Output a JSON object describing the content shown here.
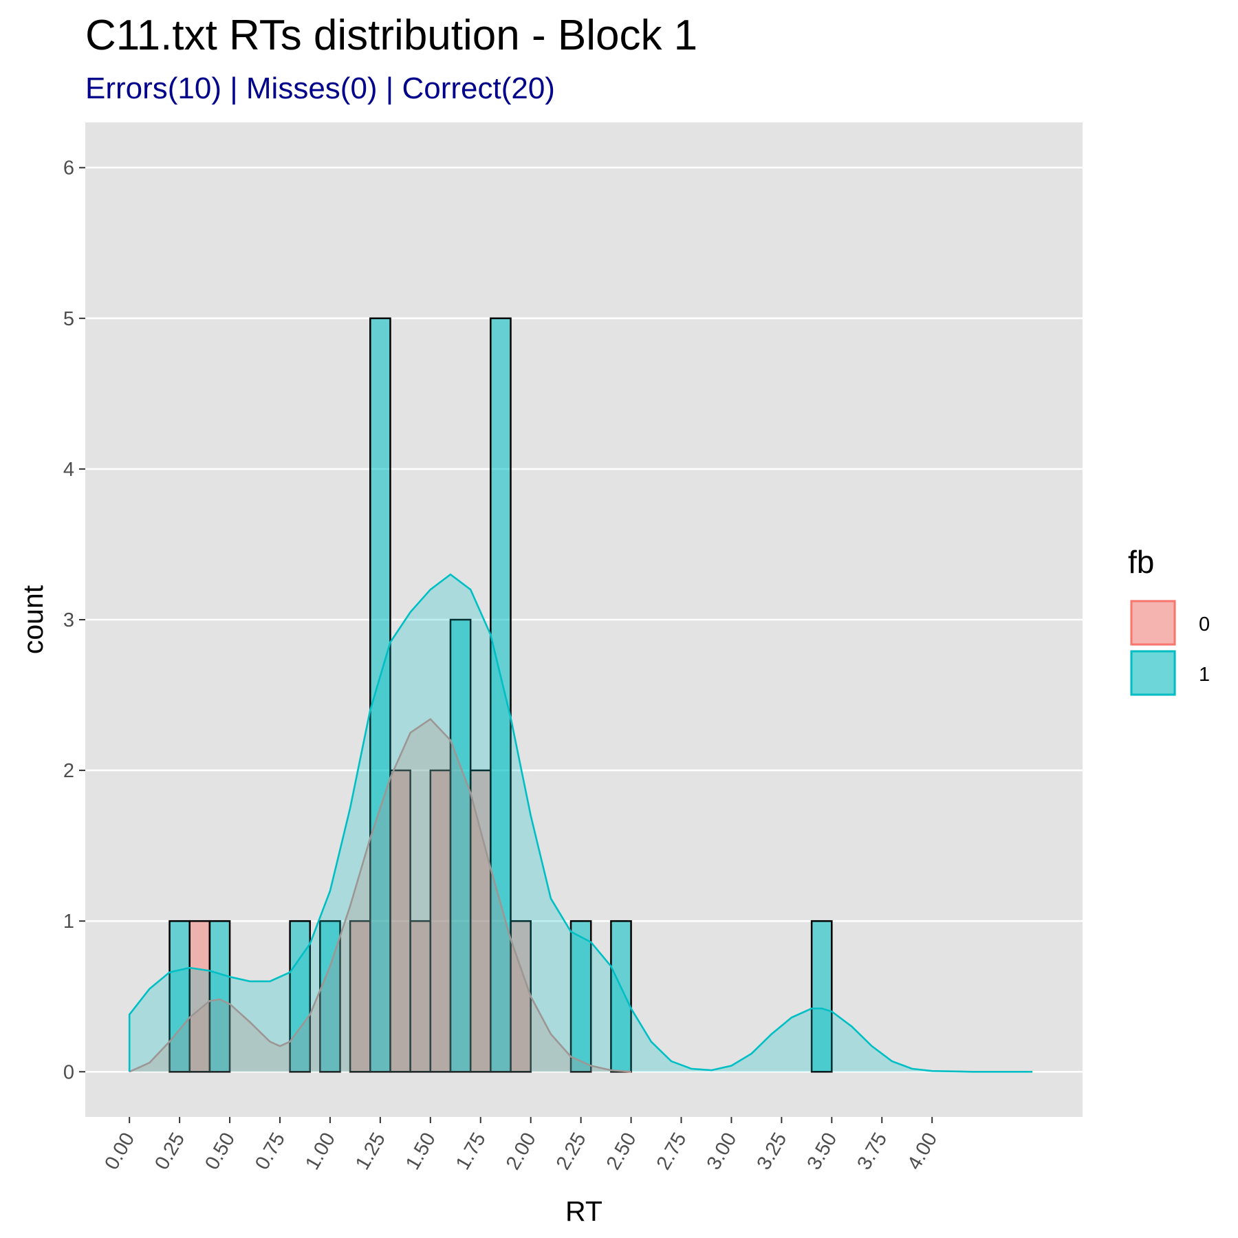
{
  "chart_data": {
    "type": "histogram",
    "title": "C11.txt RTs distribution - Block 1",
    "subtitle": "Errors(10) | Misses(0) | Correct(20)",
    "xlabel": "RT",
    "ylabel": "count",
    "xlim": [
      -0.22,
      4.75
    ],
    "ylim": [
      -0.3,
      6.3
    ],
    "x_ticks": [
      "0.00",
      "0.25",
      "0.50",
      "0.75",
      "1.00",
      "1.25",
      "1.50",
      "1.75",
      "2.00",
      "2.25",
      "2.50",
      "2.75",
      "3.00",
      "3.25",
      "3.50",
      "3.75",
      "4.00"
    ],
    "y_ticks": [
      "0",
      "1",
      "2",
      "3",
      "4",
      "5",
      "6"
    ],
    "bin_width": 0.1,
    "grid": true,
    "legend": {
      "title": "fb",
      "position": "right"
    },
    "series": [
      {
        "name": "0",
        "color": "#F8766D",
        "bars": [
          {
            "x": 0.35,
            "count": 1
          },
          {
            "x": 1.15,
            "count": 1
          },
          {
            "x": 1.35,
            "count": 2
          },
          {
            "x": 1.45,
            "count": 1
          },
          {
            "x": 1.55,
            "count": 2
          },
          {
            "x": 1.75,
            "count": 2
          },
          {
            "x": 1.95,
            "count": 1
          }
        ],
        "density_curve": [
          [
            0.0,
            0.0
          ],
          [
            0.1,
            0.06
          ],
          [
            0.2,
            0.2
          ],
          [
            0.3,
            0.36
          ],
          [
            0.4,
            0.47
          ],
          [
            0.45,
            0.48
          ],
          [
            0.5,
            0.45
          ],
          [
            0.6,
            0.33
          ],
          [
            0.7,
            0.2
          ],
          [
            0.75,
            0.17
          ],
          [
            0.8,
            0.2
          ],
          [
            0.9,
            0.38
          ],
          [
            1.0,
            0.7
          ],
          [
            1.1,
            1.1
          ],
          [
            1.2,
            1.55
          ],
          [
            1.3,
            1.95
          ],
          [
            1.4,
            2.25
          ],
          [
            1.5,
            2.34
          ],
          [
            1.6,
            2.2
          ],
          [
            1.7,
            1.85
          ],
          [
            1.8,
            1.35
          ],
          [
            1.9,
            0.88
          ],
          [
            2.0,
            0.5
          ],
          [
            2.1,
            0.25
          ],
          [
            2.2,
            0.1
          ],
          [
            2.3,
            0.04
          ],
          [
            2.4,
            0.01
          ],
          [
            2.5,
            0.0
          ]
        ]
      },
      {
        "name": "1",
        "color": "#00BFC4",
        "bars": [
          {
            "x": 0.25,
            "count": 1
          },
          {
            "x": 0.45,
            "count": 1
          },
          {
            "x": 0.85,
            "count": 1
          },
          {
            "x": 1.0,
            "count": 1
          },
          {
            "x": 1.25,
            "count": 5
          },
          {
            "x": 1.65,
            "count": 3
          },
          {
            "x": 1.85,
            "count": 5
          },
          {
            "x": 2.25,
            "count": 1
          },
          {
            "x": 2.45,
            "count": 1
          },
          {
            "x": 3.45,
            "count": 1
          }
        ],
        "density_curve": [
          [
            0.0,
            0.0
          ],
          [
            0.0,
            0.38
          ],
          [
            0.1,
            0.55
          ],
          [
            0.2,
            0.66
          ],
          [
            0.3,
            0.69
          ],
          [
            0.4,
            0.67
          ],
          [
            0.5,
            0.63
          ],
          [
            0.6,
            0.6
          ],
          [
            0.7,
            0.6
          ],
          [
            0.8,
            0.66
          ],
          [
            0.9,
            0.85
          ],
          [
            1.0,
            1.2
          ],
          [
            1.1,
            1.75
          ],
          [
            1.2,
            2.4
          ],
          [
            1.3,
            2.85
          ],
          [
            1.4,
            3.05
          ],
          [
            1.5,
            3.2
          ],
          [
            1.6,
            3.3
          ],
          [
            1.7,
            3.2
          ],
          [
            1.8,
            2.9
          ],
          [
            1.9,
            2.35
          ],
          [
            2.0,
            1.7
          ],
          [
            2.1,
            1.15
          ],
          [
            2.2,
            0.93
          ],
          [
            2.3,
            0.86
          ],
          [
            2.4,
            0.7
          ],
          [
            2.5,
            0.42
          ],
          [
            2.6,
            0.2
          ],
          [
            2.7,
            0.07
          ],
          [
            2.8,
            0.02
          ],
          [
            2.9,
            0.01
          ],
          [
            3.0,
            0.04
          ],
          [
            3.1,
            0.12
          ],
          [
            3.2,
            0.25
          ],
          [
            3.3,
            0.36
          ],
          [
            3.4,
            0.42
          ],
          [
            3.45,
            0.42
          ],
          [
            3.5,
            0.4
          ],
          [
            3.6,
            0.3
          ],
          [
            3.7,
            0.17
          ],
          [
            3.8,
            0.07
          ],
          [
            3.9,
            0.02
          ],
          [
            4.0,
            0.005
          ],
          [
            4.2,
            0.0
          ],
          [
            4.5,
            0.0
          ]
        ]
      }
    ]
  }
}
